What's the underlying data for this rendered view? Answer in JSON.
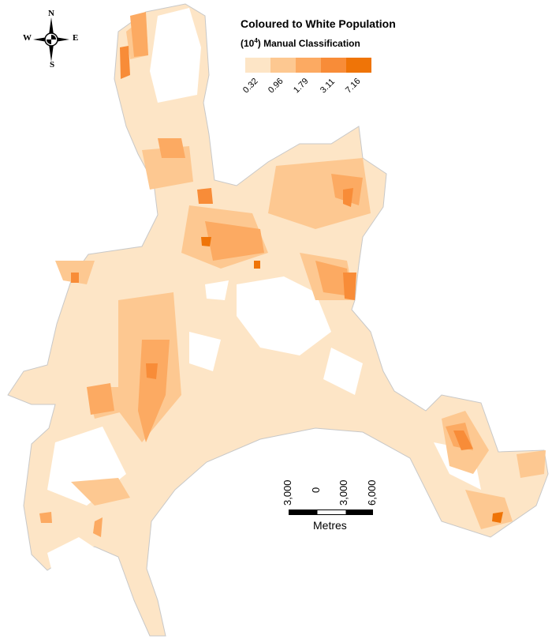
{
  "legend": {
    "title": "Coloured to White Population",
    "subtitle_prefix": "(10",
    "subtitle_exp": "4",
    "subtitle_suffix": ") Manual Classification",
    "classes": [
      {
        "label": "0.32",
        "color": "#fde5c6"
      },
      {
        "label": "0.96",
        "color": "#fdc891"
      },
      {
        "label": "1.79",
        "color": "#fcaa62"
      },
      {
        "label": "3.11",
        "color": "#f88c38"
      },
      {
        "label": "7.16",
        "color": "#ef7407"
      }
    ]
  },
  "scale_bar": {
    "labels": [
      "3,000",
      "0",
      "3,000",
      "6,000"
    ],
    "unit": "Metres"
  },
  "compass": {
    "n": "N",
    "s": "S",
    "e": "E",
    "w": "W"
  }
}
